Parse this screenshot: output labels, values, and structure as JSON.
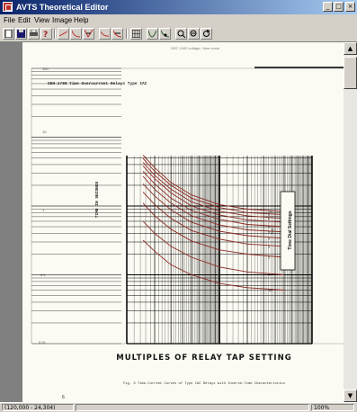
{
  "window": {
    "title": "AVTS Theoretical Editor",
    "buttons": {
      "minimize": "_",
      "maximize": "□",
      "close": "×"
    }
  },
  "menu": [
    {
      "label": "File"
    },
    {
      "label": "Edit"
    },
    {
      "label": "View"
    },
    {
      "label": "Image"
    },
    {
      "label": "Help"
    }
  ],
  "toolbar": {
    "icons": [
      "new-icon",
      "save-icon",
      "print-icon",
      "options-icon",
      "line-icon",
      "curve-icon",
      "scatter-icon",
      "fit-icon",
      "zoom-curve-icon",
      "grid-icon",
      "trace-icon",
      "point-icon",
      "zoom-in-icon",
      "zoom-out-icon",
      "refresh-icon"
    ]
  },
  "page": {
    "header_small": "GEC 1000 voltage / time curve",
    "doc_code": "GEH-1788",
    "doc_title": "Time Overcurrent Relays Type IAC",
    "y_axis_label": "TIME IN SECONDS",
    "y_ticks": [
      "100",
      "10",
      "1",
      "0.1",
      "0.01"
    ],
    "x_title": "MULTIPLES OF RELAY TAP SETTING",
    "right_label": "Time Dial Settings",
    "dial_label": "Dial",
    "dial_values": [
      "10",
      "9",
      "8",
      "7",
      "6",
      "5",
      "4",
      "3",
      "2",
      "1",
      "1/2"
    ],
    "caption": "Fig. 3   Time-Current Curves of Type IAC Relays with Inverse-Time Characteristics",
    "page_marker": "6"
  },
  "chart_data": {
    "type": "line",
    "title": "Time Overcurrent Relays Type IAC",
    "xlabel": "MULTIPLES OF RELAY TAP SETTING",
    "ylabel": "TIME IN SECONDS",
    "xscale": "log",
    "yscale": "log",
    "xlim": [
      1,
      100
    ],
    "ylim": [
      0.01,
      100
    ],
    "grid": true,
    "series": [
      {
        "name": "10",
        "x": [
          1.5,
          2,
          3,
          5,
          10,
          20,
          50
        ],
        "y": [
          5.5,
          3.6,
          2.2,
          1.45,
          1.05,
          0.9,
          0.83
        ]
      },
      {
        "name": "9",
        "x": [
          1.5,
          2,
          3,
          5,
          10,
          20,
          50
        ],
        "y": [
          4.9,
          3.2,
          2.0,
          1.3,
          0.95,
          0.8,
          0.75
        ]
      },
      {
        "name": "8",
        "x": [
          1.5,
          2,
          3,
          5,
          10,
          20,
          50
        ],
        "y": [
          4.3,
          2.8,
          1.75,
          1.15,
          0.84,
          0.72,
          0.66
        ]
      },
      {
        "name": "7",
        "x": [
          1.5,
          2,
          3,
          5,
          10,
          20,
          50
        ],
        "y": [
          3.8,
          2.5,
          1.55,
          1.0,
          0.74,
          0.63,
          0.58
        ]
      },
      {
        "name": "6",
        "x": [
          1.5,
          2,
          3,
          5,
          10,
          20,
          50
        ],
        "y": [
          3.2,
          2.1,
          1.3,
          0.86,
          0.64,
          0.54,
          0.5
        ]
      },
      {
        "name": "5",
        "x": [
          1.5,
          2,
          3,
          5,
          10,
          20,
          50
        ],
        "y": [
          2.7,
          1.75,
          1.1,
          0.72,
          0.53,
          0.45,
          0.42
        ]
      },
      {
        "name": "4",
        "x": [
          1.5,
          2,
          3,
          5,
          10,
          20,
          50
        ],
        "y": [
          2.1,
          1.4,
          0.88,
          0.58,
          0.43,
          0.37,
          0.34
        ]
      },
      {
        "name": "3",
        "x": [
          1.5,
          2,
          3,
          5,
          10,
          20,
          50
        ],
        "y": [
          1.6,
          1.05,
          0.66,
          0.44,
          0.33,
          0.28,
          0.26
        ]
      },
      {
        "name": "2",
        "x": [
          1.5,
          2,
          3,
          5,
          10,
          20,
          50
        ],
        "y": [
          1.1,
          0.72,
          0.46,
          0.31,
          0.23,
          0.2,
          0.18
        ]
      },
      {
        "name": "1",
        "x": [
          1.5,
          2,
          3,
          5,
          10,
          20,
          50
        ],
        "y": [
          0.6,
          0.4,
          0.26,
          0.18,
          0.13,
          0.11,
          0.1
        ]
      },
      {
        "name": "1/2",
        "x": [
          1.5,
          2,
          3,
          5,
          10,
          20,
          50
        ],
        "y": [
          0.32,
          0.22,
          0.14,
          0.1,
          0.075,
          0.065,
          0.06
        ]
      }
    ]
  },
  "colors": {
    "curve": "#8a2a22",
    "grid": "#000000",
    "paper": "#fbfaf3",
    "titlebar": "#0a246a"
  },
  "status": {
    "coords": "(120,000 - 24,304)",
    "zoom": "100%"
  }
}
